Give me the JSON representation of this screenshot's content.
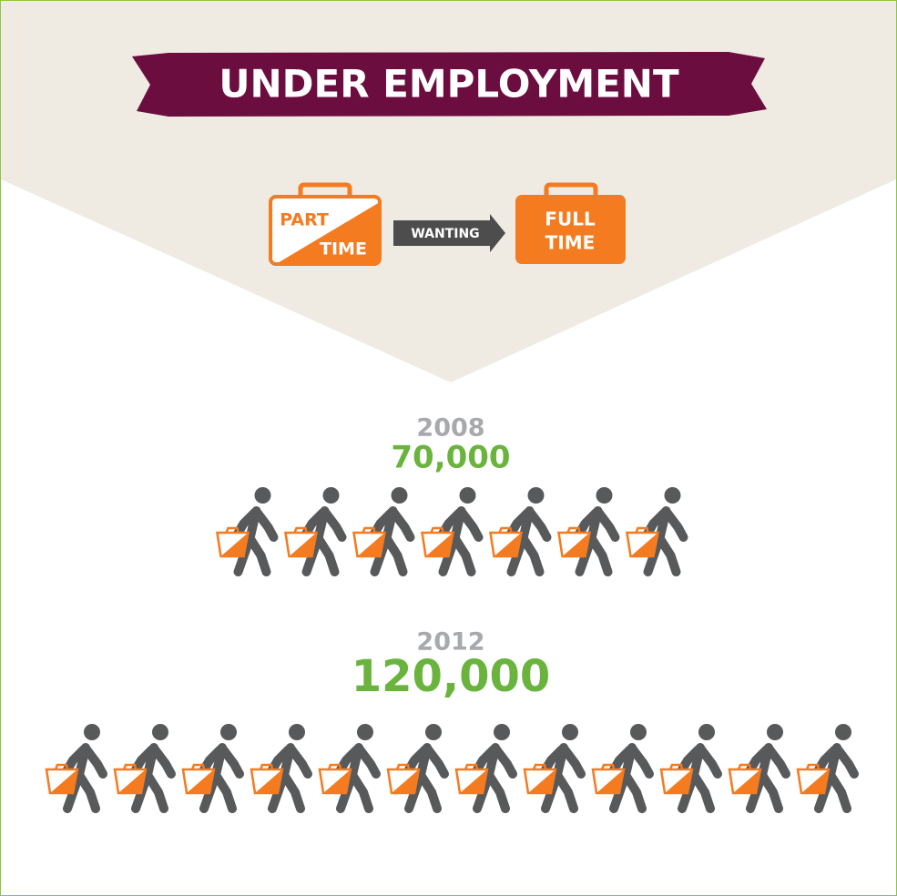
{
  "header": {
    "title": "UNDER EMPLOYMENT"
  },
  "legend": {
    "from": [
      "PART",
      "TIME"
    ],
    "arrow": "WANTING",
    "to": [
      "FULL",
      "TIME"
    ]
  },
  "chart_data": {
    "type": "pictogram",
    "categories": [
      "2008",
      "2012"
    ],
    "values": [
      70000,
      120000
    ],
    "value_labels": [
      "70,000",
      "120,000"
    ],
    "color": "#f47b20"
  }
}
